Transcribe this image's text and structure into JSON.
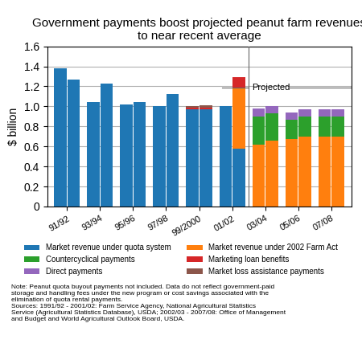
{
  "chart_data": {
    "type": "bar",
    "stacked": true,
    "title": "Government payments boost projected peanut farm revenues\nto near recent average",
    "ylabel": "$ billion",
    "categories": [
      "91/92",
      "93/94",
      "95/96",
      "97/98",
      "99/2000",
      "01/02",
      "03/04",
      "05/06",
      "07/08"
    ],
    "series": [
      {
        "name": "Market revenue under quota system",
        "values": [
          [
            1.38,
            1.27
          ],
          [
            1.04,
            1.23
          ],
          [
            1.02,
            1.04
          ],
          [
            1.0,
            1.12
          ],
          [
            0.97,
            0.97
          ],
          [
            1.0,
            0.58
          ],
          [
            0.0,
            0.0
          ],
          [
            0.0,
            0.0
          ],
          [
            0.0,
            0.0
          ]
        ]
      },
      {
        "name": "Market revenue under 2002 Farm Act",
        "values": [
          [
            0.0,
            0.0
          ],
          [
            0.0,
            0.0
          ],
          [
            0.0,
            0.0
          ],
          [
            0.0,
            0.0
          ],
          [
            0.0,
            0.0
          ],
          [
            0.0,
            0.6
          ],
          [
            0.62,
            0.66
          ],
          [
            0.67,
            0.7
          ],
          [
            0.7,
            0.7
          ]
        ]
      },
      {
        "name": "Countercyclical payments",
        "values": [
          [
            0.0,
            0.0
          ],
          [
            0.0,
            0.0
          ],
          [
            0.0,
            0.0
          ],
          [
            0.0,
            0.0
          ],
          [
            0.0,
            0.0
          ],
          [
            0.0,
            0.0
          ],
          [
            0.28,
            0.27
          ],
          [
            0.2,
            0.2
          ],
          [
            0.2,
            0.2
          ]
        ]
      },
      {
        "name": "Marketing loan benefits",
        "values": [
          [
            0.0,
            0.0
          ],
          [
            0.0,
            0.0
          ],
          [
            0.0,
            0.0
          ],
          [
            0.0,
            0.0
          ],
          [
            0.02,
            0.02
          ],
          [
            0.0,
            0.11
          ],
          [
            0.0,
            0.0
          ],
          [
            0.0,
            0.0
          ],
          [
            0.0,
            0.0
          ]
        ]
      },
      {
        "name": "Direct payments",
        "values": [
          [
            0.0,
            0.0
          ],
          [
            0.0,
            0.0
          ],
          [
            0.0,
            0.0
          ],
          [
            0.0,
            0.0
          ],
          [
            0.0,
            0.0
          ],
          [
            0.0,
            0.0
          ],
          [
            0.08,
            0.07
          ],
          [
            0.07,
            0.07
          ],
          [
            0.07,
            0.07
          ]
        ]
      },
      {
        "name": "Market loss assistance payments",
        "values": [
          [
            0.0,
            0.0
          ],
          [
            0.0,
            0.0
          ],
          [
            0.0,
            0.0
          ],
          [
            0.0,
            0.0
          ],
          [
            0.01,
            0.02
          ],
          [
            0.0,
            0.0
          ],
          [
            0.0,
            0.0
          ],
          [
            0.0,
            0.0
          ],
          [
            0.0,
            0.0
          ]
        ]
      }
    ],
    "ylim": [
      0,
      1.6
    ],
    "yticks": [
      0,
      0.2,
      0.4,
      0.6,
      0.8,
      {
        "value": 1.0,
        "label": "1.0"
      },
      1.2,
      1.4,
      1.6
    ],
    "grid": true,
    "legend": "below",
    "annotations": [
      {
        "text": "Projected",
        "x": "03/04",
        "y": 1.19
      }
    ],
    "note": "Note: Peanut quota buyout payments not included. Data do not reflect government-paid\nstorage and handling fees under the new program or cost savings associated with the\nelimination of quota rental payments.\nSources: 1991/92 - 2001/02: Farm Service Agency, National Agricultural Statistics\nService (Agricultural Statistics Database), USDA; 2002/03 - 2007/08: Office of Management\nand Budget and World Agricultural Outlook Board, USDA."
  }
}
